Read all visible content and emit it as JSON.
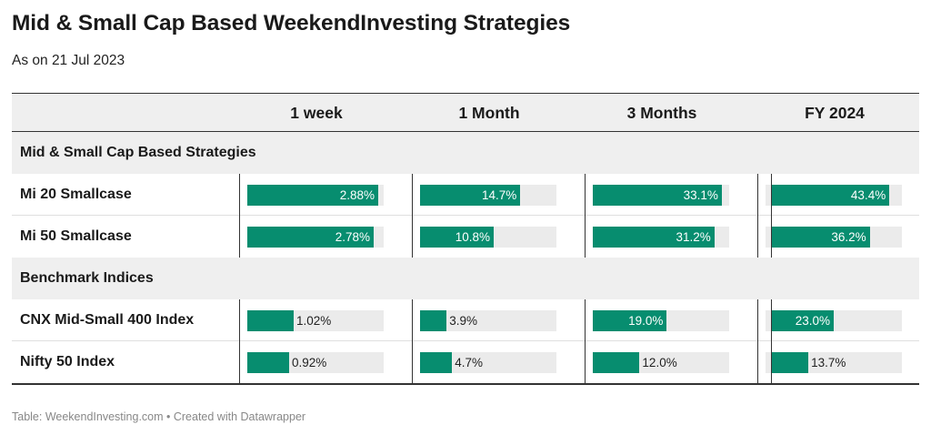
{
  "header": {
    "title": "Mid & Small Cap Based WeekendInvesting Strategies",
    "subtitle": "As on 21 Jul 2023"
  },
  "footer": {
    "text": "Table: WeekendInvesting.com • Created with Datawrapper"
  },
  "colors": {
    "bar": "#078d6f",
    "track": "#ebebeb",
    "group_bg": "#efefef"
  },
  "chart_data": {
    "type": "table",
    "columns": [
      "1 week",
      "1 Month",
      "3 Months",
      "FY 2024"
    ],
    "groups": [
      {
        "label": "Mid & Small Cap Based Strategies",
        "rows": [
          {
            "label": "Mi 20 Smallcase",
            "values": [
              2.88,
              14.7,
              33.1,
              43.4
            ],
            "display": [
              "2.88%",
              "14.7%",
              "33.1%",
              "43.4%"
            ]
          },
          {
            "label": "Mi 50 Smallcase",
            "values": [
              2.78,
              10.8,
              31.2,
              36.2
            ],
            "display": [
              "2.78%",
              "10.8%",
              "31.2%",
              "36.2%"
            ]
          }
        ]
      },
      {
        "label": "Benchmark Indices",
        "rows": [
          {
            "label": "CNX Mid-Small 400 Index",
            "values": [
              1.02,
              3.9,
              19.0,
              23.0
            ],
            "display": [
              "1.02%",
              "3.9%",
              "19.0%",
              "23.0%"
            ]
          },
          {
            "label": "Nifty 50 Index",
            "values": [
              0.92,
              4.7,
              12.0,
              13.7
            ],
            "display": [
              "0.92%",
              "4.7%",
              "12.0%",
              "13.7%"
            ]
          }
        ]
      }
    ],
    "column_ranges": [
      [
        0,
        2.88
      ],
      [
        0,
        14.7
      ],
      [
        0,
        33.1
      ],
      [
        -2,
        43.4
      ]
    ],
    "bar_track_full": [
      3,
      20,
      35,
      48
    ]
  }
}
